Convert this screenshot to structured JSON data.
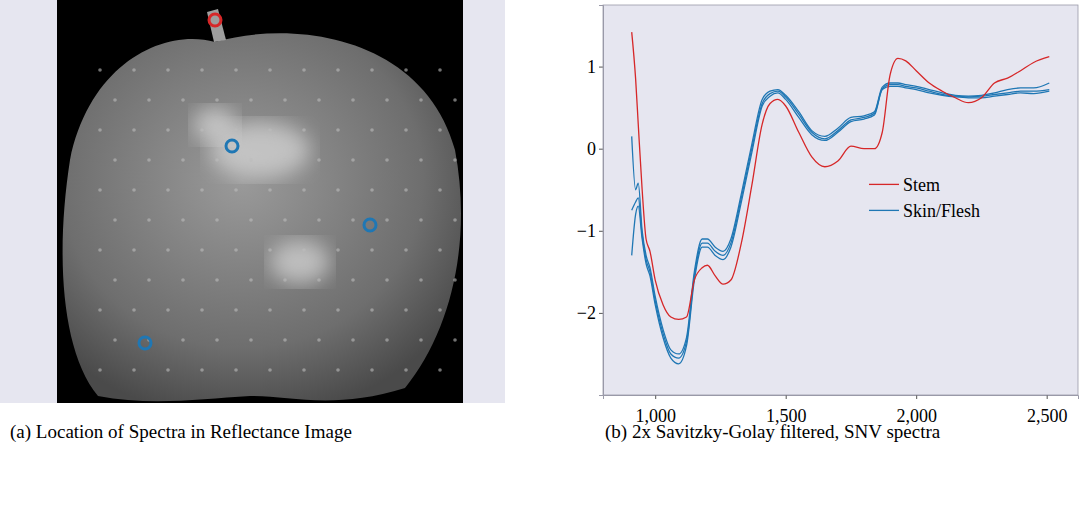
{
  "chart_data": [
    {
      "type": "image",
      "caption": "(a) Location of Spectra in Reflectance Image"
    },
    {
      "type": "line",
      "caption": "(b) 2x Savitzky-Golay filtered, SNV spectra",
      "x": [
        910,
        925,
        935,
        950,
        965,
        980,
        1000,
        1030,
        1060,
        1090,
        1120,
        1150,
        1180,
        1200,
        1230,
        1260,
        1290,
        1330,
        1370,
        1410,
        1440,
        1470,
        1500,
        1550,
        1600,
        1650,
        1700,
        1750,
        1800,
        1840,
        1870,
        1900,
        1930,
        1960,
        2000,
        2050,
        2100,
        2150,
        2200,
        2250,
        2300,
        2350,
        2400,
        2450,
        2510
      ],
      "series": [
        {
          "name": "Stem",
          "color": "#d62728",
          "values": [
            1.42,
            0.85,
            0.3,
            -0.5,
            -1.1,
            -1.25,
            -1.6,
            -1.9,
            -2.05,
            -2.08,
            -2.05,
            -1.6,
            -1.45,
            -1.42,
            -1.55,
            -1.65,
            -1.6,
            -1.15,
            -0.45,
            0.3,
            0.55,
            0.6,
            0.52,
            0.2,
            -0.1,
            -0.22,
            -0.15,
            0.03,
            0.0,
            0.0,
            0.2,
            0.9,
            1.1,
            1.07,
            0.95,
            0.8,
            0.7,
            0.62,
            0.56,
            0.62,
            0.8,
            0.86,
            0.95,
            1.05,
            1.12
          ]
        },
        {
          "name": "Skin/Flesh",
          "color": "#1f77b4",
          "values": [
            0.15,
            -0.5,
            -0.42,
            -1.0,
            -1.3,
            -1.45,
            -1.8,
            -2.2,
            -2.45,
            -2.5,
            -2.3,
            -1.5,
            -1.1,
            -1.1,
            -1.2,
            -1.25,
            -1.1,
            -0.55,
            0.05,
            0.6,
            0.7,
            0.72,
            0.65,
            0.45,
            0.22,
            0.15,
            0.25,
            0.38,
            0.4,
            0.45,
            0.75,
            0.8,
            0.8,
            0.78,
            0.76,
            0.72,
            0.68,
            0.65,
            0.64,
            0.65,
            0.68,
            0.72,
            0.74,
            0.74,
            0.8
          ]
        },
        {
          "name": "Skin/Flesh",
          "color": "#1f77b4",
          "values": [
            -0.75,
            -0.65,
            -0.6,
            -1.05,
            -1.35,
            -1.5,
            -1.85,
            -2.25,
            -2.5,
            -2.55,
            -2.35,
            -1.55,
            -1.15,
            -1.15,
            -1.25,
            -1.3,
            -1.15,
            -0.6,
            0.0,
            0.55,
            0.67,
            0.7,
            0.63,
            0.42,
            0.2,
            0.12,
            0.22,
            0.35,
            0.38,
            0.43,
            0.73,
            0.78,
            0.78,
            0.76,
            0.74,
            0.7,
            0.66,
            0.64,
            0.63,
            0.64,
            0.66,
            0.68,
            0.7,
            0.7,
            0.72
          ]
        },
        {
          "name": "Skin/Flesh",
          "color": "#1f77b4",
          "values": [
            -1.3,
            -0.8,
            -0.7,
            -1.1,
            -1.4,
            -1.55,
            -1.9,
            -2.3,
            -2.55,
            -2.62,
            -2.4,
            -1.6,
            -1.2,
            -1.2,
            -1.3,
            -1.35,
            -1.2,
            -0.65,
            -0.05,
            0.52,
            0.64,
            0.68,
            0.6,
            0.38,
            0.17,
            0.1,
            0.2,
            0.33,
            0.36,
            0.41,
            0.72,
            0.76,
            0.76,
            0.74,
            0.72,
            0.68,
            0.65,
            0.63,
            0.62,
            0.62,
            0.64,
            0.66,
            0.68,
            0.67,
            0.7
          ]
        }
      ],
      "xlim": [
        800,
        2620
      ],
      "ylim": [
        -3.0,
        1.75
      ],
      "xticks": [
        {
          "value": 1000,
          "label": "1,000"
        },
        {
          "value": 1500,
          "label": "1,500"
        },
        {
          "value": 2000,
          "label": "2,000"
        },
        {
          "value": 2500,
          "label": "2,500"
        }
      ],
      "yticks": [
        {
          "value": -2,
          "label": "−2"
        },
        {
          "value": -1,
          "label": "−1"
        },
        0,
        1
      ],
      "legend": "right",
      "grid": false
    }
  ]
}
